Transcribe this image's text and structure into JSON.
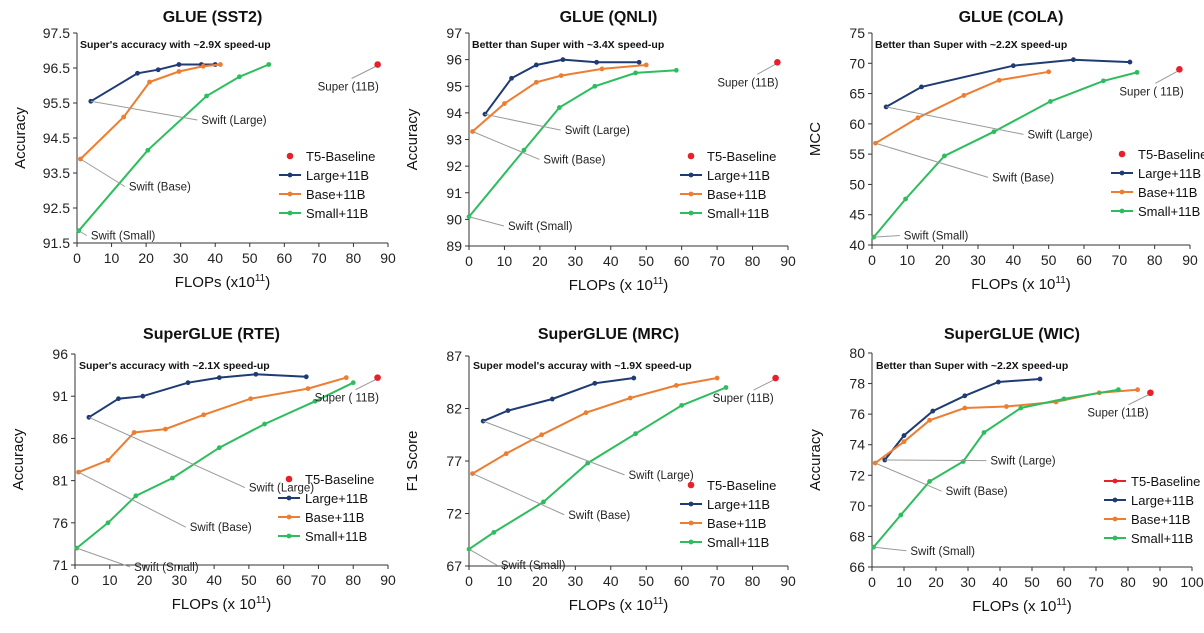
{
  "colors": {
    "baseline": "#e8202a",
    "large": "#1f3b73",
    "base": "#ed7d31",
    "small": "#2ebd5e",
    "leader": "#9a9a9a"
  },
  "chart_data": [
    {
      "type": "line",
      "title": "GLUE (SST2)",
      "xlabel": "FLOPs (x10",
      "xlabel_sup": "11",
      ")": "",
      "xlabel_suffix": ")",
      "ylabel": "Accuracy",
      "xlim": [
        0,
        90
      ],
      "ylim": [
        91.5,
        97.5
      ],
      "yticks": [
        "91.5",
        "92.5",
        "93.5",
        "94.5",
        "95.5",
        "96.5",
        "97.5"
      ],
      "xticks": [
        "0",
        "10",
        "20",
        "30",
        "40",
        "50",
        "60",
        "70",
        "80",
        "90"
      ],
      "annotation": "Super's accuracy with ~2.9X speed-up",
      "legend": [
        "T5-Baseline",
        "Large+11B",
        "Base+11B",
        "Small+11B"
      ],
      "legend_square": false,
      "baseline": {
        "name": "T5-Baseline",
        "x": 87,
        "y": 96.6,
        "label": "Super (11B)"
      },
      "series": [
        {
          "name": "Large+11B",
          "x": [
            4,
            17.5,
            23.5,
            29.5,
            36,
            40
          ],
          "y": [
            95.55,
            96.35,
            96.45,
            96.6,
            96.6,
            96.6
          ]
        },
        {
          "name": "Base+11B",
          "x": [
            1,
            13.5,
            21,
            29.5,
            36.5,
            41.5
          ],
          "y": [
            93.9,
            95.1,
            96.1,
            96.4,
            96.55,
            96.6
          ]
        },
        {
          "name": "Small+11B",
          "x": [
            0.5,
            20.5,
            37.5,
            47,
            55.5
          ],
          "y": [
            91.85,
            94.15,
            95.7,
            96.25,
            96.6
          ]
        }
      ],
      "point_labels": [
        {
          "text": "Swift (Large)",
          "x": 36,
          "y": 94.9
        },
        {
          "text": "Swift (Base)",
          "x": 15,
          "y": 93.0
        },
        {
          "text": "Swift (Small)",
          "x": 4,
          "y": 91.6
        }
      ]
    },
    {
      "type": "line",
      "title": "GLUE (QNLI)",
      "xlabel": "FLOPs (x 10",
      "xlabel_sup": "11",
      "xlabel_suffix": ")",
      "ylabel": "Accuracy",
      "xlim": [
        0,
        90
      ],
      "ylim": [
        89,
        97
      ],
      "yticks": [
        "89",
        "90",
        "91",
        "92",
        "93",
        "94",
        "95",
        "96",
        "97"
      ],
      "xticks": [
        "0",
        "10",
        "20",
        "30",
        "40",
        "50",
        "60",
        "70",
        "80",
        "90"
      ],
      "annotation": "Better than Super with ~3.4X speed-up",
      "legend": [
        "T5-Baseline",
        "Large+11B",
        "Base+11B",
        "Small+11B"
      ],
      "legend_square": false,
      "baseline": {
        "name": "T5-Baseline",
        "x": 87,
        "y": 95.9,
        "label": "Super (11B)"
      },
      "series": [
        {
          "name": "Large+11B",
          "x": [
            4.5,
            12,
            19,
            26.5,
            36,
            48
          ],
          "y": [
            93.95,
            95.3,
            95.8,
            96.0,
            95.9,
            95.9
          ]
        },
        {
          "name": "Base+11B",
          "x": [
            1,
            10,
            19,
            26,
            37.5,
            50
          ],
          "y": [
            93.3,
            94.35,
            95.15,
            95.4,
            95.65,
            95.8
          ]
        },
        {
          "name": "Small+11B",
          "x": [
            0,
            15.5,
            25.5,
            35.5,
            47,
            58.5
          ],
          "y": [
            90.1,
            92.6,
            94.2,
            95.0,
            95.5,
            95.6
          ]
        }
      ],
      "point_labels": [
        {
          "text": "Swift (Large)",
          "x": 27,
          "y": 93.2
        },
        {
          "text": "Swift (Base)",
          "x": 21,
          "y": 92.1
        },
        {
          "text": "Swift (Small)",
          "x": 11,
          "y": 89.6
        }
      ]
    },
    {
      "type": "line",
      "title": "GLUE (COLA)",
      "xlabel": "FLOPs (x 10",
      "xlabel_sup": "11",
      "xlabel_suffix": ")",
      "ylabel": "MCC",
      "xlim": [
        0,
        90
      ],
      "ylim": [
        40,
        75
      ],
      "yticks": [
        "40",
        "45",
        "50",
        "55",
        "60",
        "65",
        "70",
        "75"
      ],
      "xticks": [
        "0",
        "10",
        "20",
        "30",
        "40",
        "50",
        "60",
        "70",
        "80",
        "90"
      ],
      "annotation": "Better than Super with ~2.2X speed-up",
      "legend": [
        "T5-Baseline",
        "Large+11B",
        "Base+11B",
        "Small+11B"
      ],
      "legend_square": false,
      "baseline": {
        "name": "T5-Baseline",
        "x": 87,
        "y": 69.0,
        "label": "Super ( 11B)"
      },
      "series": [
        {
          "name": "Large+11B",
          "x": [
            4,
            14,
            40,
            57,
            73
          ],
          "y": [
            62.8,
            66.1,
            69.6,
            70.6,
            70.2
          ]
        },
        {
          "name": "Base+11B",
          "x": [
            1,
            13,
            26,
            36,
            50
          ],
          "y": [
            56.8,
            61.0,
            64.7,
            67.2,
            68.6
          ]
        },
        {
          "name": "Small+11B",
          "x": [
            0.5,
            9.5,
            20.5,
            34.5,
            50.5,
            65.5,
            75
          ]
        },
        {
          "name": "Small+11B-y",
          "y": [
            41.3,
            47.6,
            54.7,
            58.7,
            63.7,
            67.1,
            68.5
          ]
        }
      ],
      "point_labels": [
        {
          "text": "Swift (Large)",
          "x": 44,
          "y": 57.6
        },
        {
          "text": "Swift (Base)",
          "x": 34,
          "y": 50.5
        },
        {
          "text": "Swift (Small)",
          "x": 9,
          "y": 40.9
        }
      ]
    },
    {
      "type": "line",
      "title": "SuperGLUE (RTE)",
      "xlabel": "FLOPs (x 10",
      "xlabel_sup": "11",
      "xlabel_suffix": ")",
      "ylabel": "Accuracy",
      "xlim": [
        0,
        90
      ],
      "ylim": [
        71,
        96
      ],
      "yticks": [
        "71",
        "76",
        "81",
        "86",
        "91",
        "96"
      ],
      "xticks": [
        "0",
        "10",
        "20",
        "30",
        "40",
        "50",
        "60",
        "70",
        "80",
        "90"
      ],
      "annotation": "Super's accuracy with ~2.1X speed-up",
      "legend": [
        "T5-Baseline",
        "Large+11B",
        "Base+11B",
        "Small+11B"
      ],
      "legend_square": false,
      "baseline": {
        "name": "T5-Baseline",
        "x": 87,
        "y": 93.2,
        "label": "Super ( 11B)"
      },
      "series": [
        {
          "name": "Large+11B",
          "x": [
            4,
            12.5,
            19.5,
            32.5,
            41.5,
            52,
            66.5
          ],
          "y": [
            88.5,
            90.7,
            91.0,
            92.6,
            93.2,
            93.6,
            93.3
          ]
        },
        {
          "name": "Base+11B",
          "x": [
            1,
            9.5,
            17,
            26,
            37,
            50.5,
            67,
            78
          ],
          "y": [
            82.0,
            83.4,
            86.7,
            87.1,
            88.8,
            90.7,
            91.9,
            93.2
          ]
        },
        {
          "name": "Small+11B",
          "x": [
            0.5,
            9.5,
            17.5,
            28,
            41.5,
            54.5,
            69,
            80
          ]
        },
        {
          "name": "Small+11B-y",
          "y": [
            73.0,
            76.0,
            79.2,
            81.3,
            84.9,
            87.7,
            90.4,
            92.6
          ]
        }
      ],
      "point_labels": [
        {
          "text": "Swift (Large)",
          "x": 50,
          "y": 79.7
        },
        {
          "text": "Swift (Base)",
          "x": 33,
          "y": 75.0
        },
        {
          "text": "Swift (Small)",
          "x": 17,
          "y": 70.3
        }
      ]
    },
    {
      "type": "line",
      "title": "SuperGLUE (MRC)",
      "xlabel": "FLOPs (x 10",
      "xlabel_sup": "11",
      "xlabel_suffix": ")",
      "ylabel": "F1 Score",
      "xlim": [
        0,
        90
      ],
      "ylim": [
        67,
        87
      ],
      "yticks": [
        "67",
        "72",
        "77",
        "82",
        "87"
      ],
      "xticks": [
        "0",
        "10",
        "20",
        "30",
        "40",
        "50",
        "60",
        "70",
        "80",
        "90"
      ],
      "annotation": "Super model's accuray with ~1.9X speed-up",
      "legend": [
        "T5-Baseline",
        "Large+11B",
        "Base+11B",
        "Small+11B"
      ],
      "legend_square": false,
      "baseline": {
        "name": "T5-Baseline",
        "x": 86.5,
        "y": 84.9,
        "label": "Super (11B)"
      },
      "series": [
        {
          "name": "Large+11B",
          "x": [
            4,
            11,
            23.5,
            35.5,
            46.5
          ],
          "y": [
            80.8,
            81.8,
            82.9,
            84.4,
            84.9
          ]
        },
        {
          "name": "Base+11B",
          "x": [
            1,
            10.5,
            20.5,
            33,
            45.5,
            58.5,
            70
          ],
          "y": [
            75.8,
            77.7,
            79.5,
            81.6,
            83.0,
            84.2,
            84.9
          ]
        },
        {
          "name": "Small+11B",
          "x": [
            0,
            7,
            21,
            33.5,
            47,
            60,
            72.5
          ]
        },
        {
          "name": "Small+11B-y",
          "y": [
            68.6,
            70.2,
            73.1,
            76.8,
            79.6,
            82.3,
            84.0
          ]
        }
      ],
      "point_labels": [
        {
          "text": "Swift (Large)",
          "x": 45,
          "y": 75.3
        },
        {
          "text": "Swift (Base)",
          "x": 28,
          "y": 71.5
        },
        {
          "text": "Swift (Small)",
          "x": 9,
          "y": 66.7
        }
      ]
    },
    {
      "type": "line",
      "title": "SuperGLUE (WIC)",
      "xlabel": "FLOPs (x 10",
      "xlabel_sup": "11",
      "xlabel_suffix": ")",
      "ylabel": "Accuracy",
      "xlim": [
        0,
        100
      ],
      "ylim": [
        66,
        80
      ],
      "yticks": [
        "66",
        "68",
        "70",
        "72",
        "74",
        "76",
        "78",
        "80"
      ],
      "xticks": [
        "0",
        "10",
        "20",
        "30",
        "40",
        "50",
        "60",
        "70",
        "80",
        "90",
        "100"
      ],
      "annotation": "Better than Super with ~2.2X speed-up",
      "legend": [
        "T5-Baseline",
        "Large+11B",
        "Base+11B",
        "Small+11B"
      ],
      "legend_square": true,
      "baseline": {
        "name": "T5-Baseline",
        "x": 87,
        "y": 77.4,
        "label": "Super (11B)"
      },
      "series": [
        {
          "name": "Large+11B",
          "x": [
            4,
            10,
            19,
            29,
            39.5,
            52.5
          ],
          "y": [
            73.0,
            74.6,
            76.2,
            77.2,
            78.1,
            78.3
          ]
        },
        {
          "name": "Base+11B",
          "x": [
            1,
            10,
            18,
            29,
            42,
            57.5,
            71,
            83
          ],
          "y": [
            72.8,
            74.2,
            75.6,
            76.4,
            76.5,
            76.8,
            77.4,
            77.6
          ]
        },
        {
          "name": "Small+11B",
          "x": [
            0.5,
            9,
            18,
            28.5,
            35,
            46.5,
            60,
            77
          ]
        },
        {
          "name": "Small+11B-y",
          "y": [
            67.3,
            69.4,
            71.6,
            72.9,
            74.8,
            76.4,
            77.0,
            77.6
          ]
        }
      ],
      "point_labels": [
        {
          "text": "Swift (Large)",
          "x": 37,
          "y": 72.7
        },
        {
          "text": "Swift (Base)",
          "x": 23,
          "y": 70.7
        },
        {
          "text": "Swift (Small)",
          "x": 12,
          "y": 66.8
        }
      ]
    }
  ]
}
